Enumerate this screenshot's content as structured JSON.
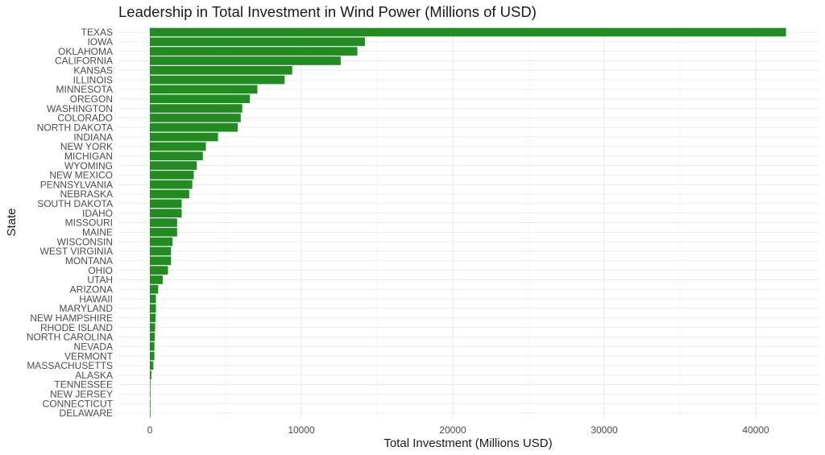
{
  "chart_data": {
    "type": "bar",
    "orientation": "horizontal",
    "title": "Leadership in Total Investment in Wind Power (Millions of USD)",
    "xlabel": "Total Investment (Millions USD)",
    "ylabel": "State",
    "xlim": [
      0,
      44000
    ],
    "xticks": [
      0,
      10000,
      20000,
      30000,
      40000
    ],
    "grid": true,
    "bar_color": "#228B22",
    "categories": [
      "TEXAS",
      "IOWA",
      "OKLAHOMA",
      "CALIFORNIA",
      "KANSAS",
      "ILLINOIS",
      "MINNESOTA",
      "OREGON",
      "WASHINGTON",
      "COLORADO",
      "NORTH DAKOTA",
      "INDIANA",
      "NEW YORK",
      "MICHIGAN",
      "WYOMING",
      "NEW MEXICO",
      "PENNSYLVANIA",
      "NEBRASKA",
      "SOUTH DAKOTA",
      "IDAHO",
      "MISSOURI",
      "MAINE",
      "WISCONSIN",
      "WEST VIRGINIA",
      "MONTANA",
      "OHIO",
      "UTAH",
      "ARIZONA",
      "HAWAII",
      "MARYLAND",
      "NEW HAMPSHIRE",
      "RHODE ISLAND",
      "NORTH CAROLINA",
      "NEVADA",
      "VERMONT",
      "MASSACHUSETTS",
      "ALASKA",
      "TENNESSEE",
      "NEW JERSEY",
      "CONNECTICUT",
      "DELAWARE"
    ],
    "values": [
      42000,
      14200,
      13700,
      12600,
      9400,
      8900,
      7100,
      6600,
      6100,
      6000,
      5800,
      4500,
      3700,
      3500,
      3100,
      2900,
      2800,
      2600,
      2100,
      2100,
      1800,
      1800,
      1500,
      1400,
      1400,
      1200,
      850,
      550,
      400,
      400,
      380,
      350,
      330,
      300,
      300,
      230,
      100,
      40,
      20,
      15,
      10
    ]
  }
}
